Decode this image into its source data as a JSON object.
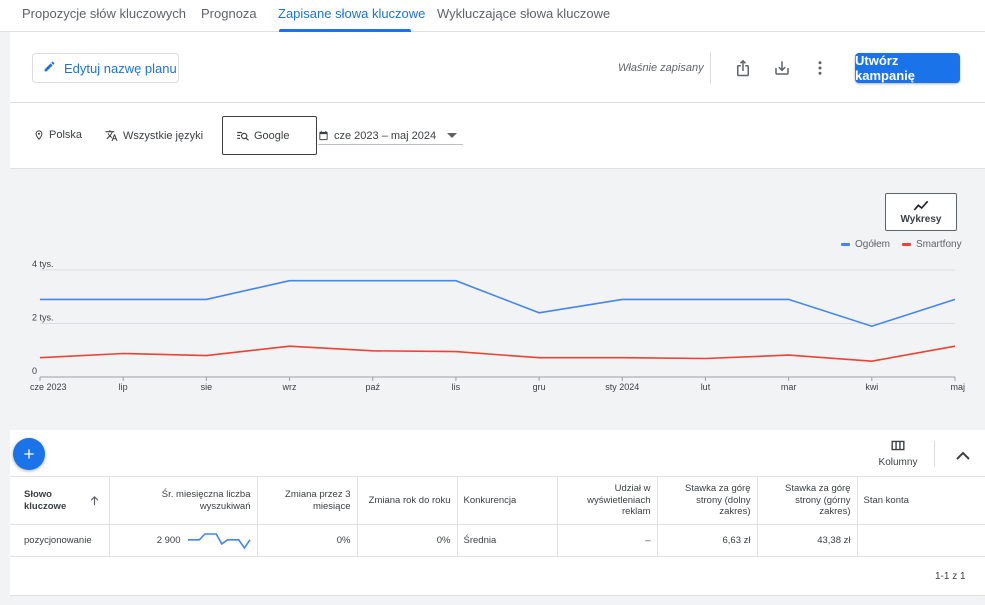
{
  "tabs": [
    {
      "label": "Propozycje słów kluczowych"
    },
    {
      "label": "Prognoza"
    },
    {
      "label": "Zapisane słowa kluczowe"
    },
    {
      "label": "Wykluczające słowa kluczowe"
    }
  ],
  "header": {
    "edit_label": "Edytuj nazwę planu",
    "saved_status": "Właśnie zapisany",
    "create_label": "Utwórz kampanię"
  },
  "filters": {
    "location": "Polska",
    "language": "Wszystkie języki",
    "network": "Google",
    "date_range": "cze 2023 – maj 2024"
  },
  "chart_controls": {
    "charts_label": "Wykresy"
  },
  "colors": {
    "accent": "#1a73e8",
    "series_total": "#4285f4",
    "series_mobile": "#ea4335"
  },
  "chart_data": {
    "type": "line",
    "x": [
      "cze 2023",
      "lip",
      "sie",
      "wrz",
      "paź",
      "lis",
      "gru",
      "sty 2024",
      "lut",
      "mar",
      "kwi",
      "maj"
    ],
    "series": [
      {
        "name": "Ogółem",
        "values": [
          2900,
          2900,
          2900,
          3600,
          3600,
          3600,
          2400,
          2900,
          2900,
          2900,
          1900,
          2900
        ]
      },
      {
        "name": "Smartfony",
        "values": [
          720,
          880,
          800,
          1150,
          980,
          950,
          720,
          720,
          690,
          820,
          590,
          1150
        ]
      }
    ],
    "ylim": [
      0,
      4000
    ],
    "yticks": [
      {
        "value": 0,
        "label": "0"
      },
      {
        "value": 2000,
        "label": "2 tys."
      },
      {
        "value": 4000,
        "label": "4 tys."
      }
    ],
    "grid": true,
    "legend": "top-right"
  },
  "table": {
    "columns_label": "Kolumny",
    "headers": {
      "keyword": "Słowo kluczowe",
      "avg_searches": "Śr. miesięczna liczba wyszukiwań",
      "change_3m": "Zmiana przez 3 miesiące",
      "change_yoy": "Zmiana rok do roku",
      "competition": "Konkurencja",
      "impression_share": "Udział w wyświetleniach reklam",
      "bid_low": "Stawka za górę strony (dolny zakres)",
      "bid_high": "Stawka za górę strony (górny zakres)",
      "account_status": "Stan konta"
    },
    "rows": [
      {
        "keyword": "pozycjonowanie",
        "avg_searches": "2 900",
        "trend": [
          2900,
          2900,
          2900,
          3600,
          3600,
          3600,
          2400,
          2900,
          2900,
          2900,
          1900,
          2900
        ],
        "change_3m": "0%",
        "change_yoy": "0%",
        "competition": "Średnia",
        "impression_share": "–",
        "bid_low": "6,63 zł",
        "bid_high": "43,38 zł",
        "account_status": ""
      }
    ],
    "pagination": "1-1 z 1"
  }
}
